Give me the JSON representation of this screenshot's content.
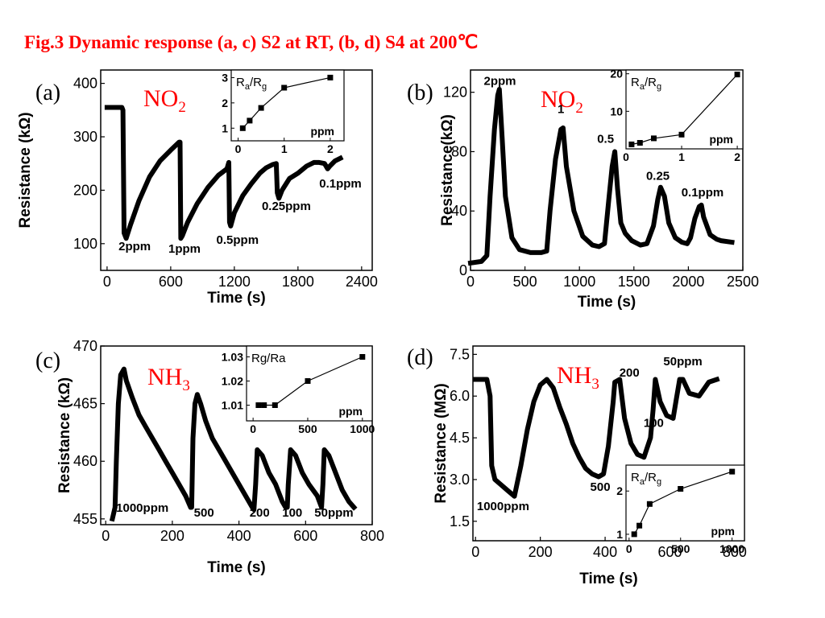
{
  "title": "Fig.3  Dynamic response (a, c) S2 at RT, (b, d) S4 at 200℃",
  "chart_data": [
    {
      "panel_label": "(a)",
      "type": "line",
      "gas": {
        "base": "NO",
        "sub": "2"
      },
      "xlabel": "Time (s)",
      "ylabel": "Resistance (kΩ)",
      "xlim": [
        -60,
        2500
      ],
      "ylim": [
        50,
        425
      ],
      "xticks": [
        0,
        600,
        1200,
        1800,
        2400
      ],
      "yticks": [
        100,
        200,
        300,
        400
      ],
      "series": [
        {
          "x": [
            0,
            140,
            150,
            160,
            180,
            220,
            300,
            400,
            500,
            600,
            680,
            688,
            695,
            710,
            760,
            850,
            950,
            1050,
            1130,
            1148,
            1155,
            1165,
            1200,
            1280,
            1360,
            1440,
            1500,
            1560,
            1595,
            1605,
            1620,
            1650,
            1720,
            1800,
            1880,
            1950,
            2000,
            2050,
            2080,
            2100,
            2150,
            2200
          ],
          "y": [
            355,
            355,
            350,
            120,
            110,
            135,
            180,
            225,
            255,
            275,
            290,
            290,
            110,
            115,
            140,
            175,
            205,
            228,
            240,
            252,
            140,
            133,
            158,
            190,
            212,
            232,
            242,
            248,
            250,
            195,
            185,
            200,
            222,
            232,
            245,
            252,
            252,
            250,
            240,
            245,
            255,
            260
          ]
        }
      ],
      "annotations": [
        {
          "text": "2ppm",
          "x": 260,
          "y": 88
        },
        {
          "text": "1ppm",
          "x": 730,
          "y": 83
        },
        {
          "text": "0.5ppm",
          "x": 1230,
          "y": 100
        },
        {
          "text": "0.25ppm",
          "x": 1690,
          "y": 163
        },
        {
          "text": "0.1ppm",
          "x": 2200,
          "y": 205
        }
      ],
      "inset": {
        "ylabel": {
          "base": "R",
          "sub1": "a",
          "mid": "/R",
          "sub2": "g"
        },
        "xlabel": "ppm",
        "xlim": [
          -0.15,
          2.3
        ],
        "ylim": [
          0.5,
          3.3
        ],
        "xticks": [
          0,
          1,
          2
        ],
        "yticks": [
          1,
          2,
          3
        ],
        "series": [
          {
            "x": [
              0.1,
              0.25,
              0.5,
              1,
              2
            ],
            "y": [
              1,
              1.3,
              1.8,
              2.6,
              3
            ]
          }
        ]
      }
    },
    {
      "panel_label": "(b)",
      "type": "line",
      "gas": {
        "base": "NO",
        "sub": "2"
      },
      "xlabel": "Time (s)",
      "ylabel": "Resistance(kΩ)",
      "xlim": [
        0,
        2500
      ],
      "ylim": [
        0,
        135
      ],
      "xticks": [
        0,
        500,
        1000,
        1500,
        2000,
        2500
      ],
      "yticks": [
        0,
        40,
        80,
        120
      ],
      "series": [
        {
          "x": [
            0,
            100,
            150,
            180,
            220,
            250,
            265,
            290,
            320,
            380,
            450,
            550,
            650,
            700,
            730,
            780,
            830,
            850,
            880,
            950,
            1030,
            1120,
            1180,
            1230,
            1270,
            1300,
            1325,
            1350,
            1380,
            1420,
            1480,
            1560,
            1620,
            1680,
            1720,
            1745,
            1780,
            1820,
            1880,
            1940,
            1990,
            2020,
            2060,
            2100,
            2120,
            2140,
            2200,
            2260,
            2300,
            2400
          ],
          "y": [
            5,
            6,
            10,
            50,
            95,
            118,
            122,
            90,
            50,
            22,
            14,
            12,
            12,
            13,
            40,
            75,
            95,
            96,
            70,
            40,
            23,
            17,
            16,
            18,
            48,
            70,
            80,
            55,
            32,
            25,
            20,
            17,
            18,
            30,
            48,
            56,
            50,
            32,
            22,
            19,
            18,
            22,
            35,
            43,
            44,
            36,
            24,
            21,
            20,
            19
          ]
        }
      ],
      "annotations": [
        {
          "text": "2ppm",
          "x": 270,
          "y": 125
        },
        {
          "text": "1",
          "x": 830,
          "y": 106
        },
        {
          "text": "0.5",
          "x": 1240,
          "y": 86
        },
        {
          "text": "0.25",
          "x": 1720,
          "y": 61
        },
        {
          "text": "0.1ppm",
          "x": 2130,
          "y": 50
        }
      ],
      "inset": {
        "ylabel": {
          "base": "R",
          "sub1": "a",
          "mid": "/R",
          "sub2": "g"
        },
        "xlabel": "ppm",
        "xlim": [
          0,
          2.1
        ],
        "ylim": [
          0,
          21
        ],
        "xticks": [
          0,
          1,
          2
        ],
        "yticks": [
          10,
          20
        ],
        "series": [
          {
            "x": [
              0.1,
              0.25,
              0.5,
              1,
              2
            ],
            "y": [
              1.2,
              1.6,
              2.8,
              3.8,
              19.8
            ]
          }
        ]
      }
    },
    {
      "panel_label": "(c)",
      "type": "line",
      "gas": {
        "base": "NH",
        "sub": "3"
      },
      "xlabel": "Time (s)",
      "ylabel": "Resistance (kΩ)",
      "xlim": [
        -15,
        800
      ],
      "ylim": [
        454.5,
        470
      ],
      "xticks": [
        0,
        200,
        400,
        600,
        800
      ],
      "yticks": [
        455,
        460,
        465,
        470
      ],
      "series": [
        {
          "x": [
            20,
            28,
            32,
            38,
            45,
            55,
            62,
            80,
            100,
            120,
            140,
            160,
            180,
            200,
            220,
            240,
            255,
            258,
            262,
            268,
            275,
            285,
            300,
            320,
            340,
            360,
            380,
            400,
            420,
            440,
            445,
            450,
            455,
            470,
            490,
            510,
            530,
            540,
            545,
            548,
            555,
            570,
            590,
            610,
            635,
            648,
            652,
            656,
            670,
            690,
            710,
            730,
            745
          ],
          "y": [
            455,
            456,
            460,
            465,
            467.5,
            468,
            467,
            465.5,
            464,
            463,
            462,
            461,
            460,
            459,
            458,
            457,
            456,
            456,
            462,
            465,
            465.8,
            465,
            463.5,
            462,
            461,
            460,
            459,
            458,
            457,
            456,
            455.8,
            458,
            461,
            460.5,
            459,
            458,
            456.5,
            456,
            456,
            458,
            461,
            460.5,
            459,
            458,
            457,
            456,
            458,
            461,
            460.5,
            459,
            457.5,
            456.5,
            456
          ]
        }
      ],
      "annotations": [
        {
          "text": "1000ppm",
          "x": 110,
          "y": 455.6
        },
        {
          "text": "500",
          "x": 295,
          "y": 455.2
        },
        {
          "text": "200",
          "x": 462,
          "y": 455.2
        },
        {
          "text": "100",
          "x": 560,
          "y": 455.2
        },
        {
          "text": "50ppm",
          "x": 685,
          "y": 455.2
        }
      ],
      "inset": {
        "ylabel": {
          "plain": "Rg/Ra"
        },
        "xlabel": "ppm",
        "xlim": [
          -60,
          1090
        ],
        "ylim": [
          1.0035,
          1.0345
        ],
        "xticks": [
          0,
          500,
          1000
        ],
        "yticks": [
          1.01,
          1.02,
          1.03
        ],
        "ytick_labels": [
          "1.01",
          "1.02",
          "1.03"
        ],
        "series": [
          {
            "x": [
              50,
              100,
              200,
              500,
              1000
            ],
            "y": [
              1.01,
              1.01,
              1.01,
              1.02,
              1.03
            ]
          }
        ]
      }
    },
    {
      "panel_label": "(d)",
      "type": "line",
      "gas": {
        "base": "NH",
        "sub": "3"
      },
      "xlabel": "Time (s)",
      "ylabel": "Resistance (MΩ)",
      "xlim": [
        -8,
        830
      ],
      "ylim": [
        0.8,
        7.8
      ],
      "xticks": [
        0,
        200,
        400,
        600,
        800
      ],
      "yticks": [
        1.5,
        3,
        4.5,
        6,
        7.5
      ],
      "ytick_labels": [
        "1.5",
        "3.0",
        "4.5",
        "6.0",
        "7.5"
      ],
      "series": [
        {
          "x": [
            0,
            35,
            45,
            50,
            60,
            80,
            100,
            120,
            140,
            160,
            180,
            200,
            220,
            240,
            260,
            280,
            300,
            320,
            340,
            360,
            380,
            395,
            410,
            425,
            430,
            445,
            460,
            480,
            500,
            520,
            540,
            548,
            555,
            570,
            590,
            610,
            620,
            630,
            640,
            660,
            690,
            720,
            745
          ],
          "y": [
            6.6,
            6.6,
            6.0,
            3.5,
            3.0,
            2.8,
            2.6,
            2.4,
            3.5,
            4.8,
            5.8,
            6.4,
            6.6,
            6.3,
            5.6,
            5.0,
            4.3,
            3.8,
            3.4,
            3.2,
            3.1,
            3.2,
            4.2,
            5.8,
            6.5,
            6.6,
            5.2,
            4.3,
            3.9,
            3.8,
            4.5,
            5.5,
            6.6,
            5.8,
            5.3,
            5.2,
            5.9,
            6.6,
            6.6,
            6.1,
            6.0,
            6.5,
            6.6
          ]
        }
      ],
      "annotations": [
        {
          "text": "1000ppm",
          "x": 85,
          "y": 1.9
        },
        {
          "text": "500",
          "x": 385,
          "y": 2.6
        },
        {
          "text": "200",
          "x": 475,
          "y": 6.7
        },
        {
          "text": "100",
          "x": 550,
          "y": 4.9
        },
        {
          "text": "50ppm",
          "x": 640,
          "y": 7.1
        }
      ],
      "inset": {
        "ylabel": {
          "base": "R",
          "sub1": "a",
          "mid": "/R",
          "sub2": "g"
        },
        "xlabel": "ppm",
        "xlim": [
          -30,
          1120
        ],
        "ylim": [
          0.85,
          2.6
        ],
        "xticks": [
          0,
          500,
          1000
        ],
        "yticks": [
          1,
          2
        ],
        "series": [
          {
            "x": [
              50,
              100,
              200,
              500,
              1000
            ],
            "y": [
              1.0,
              1.2,
              1.7,
              2.05,
              2.45
            ]
          }
        ]
      }
    }
  ]
}
